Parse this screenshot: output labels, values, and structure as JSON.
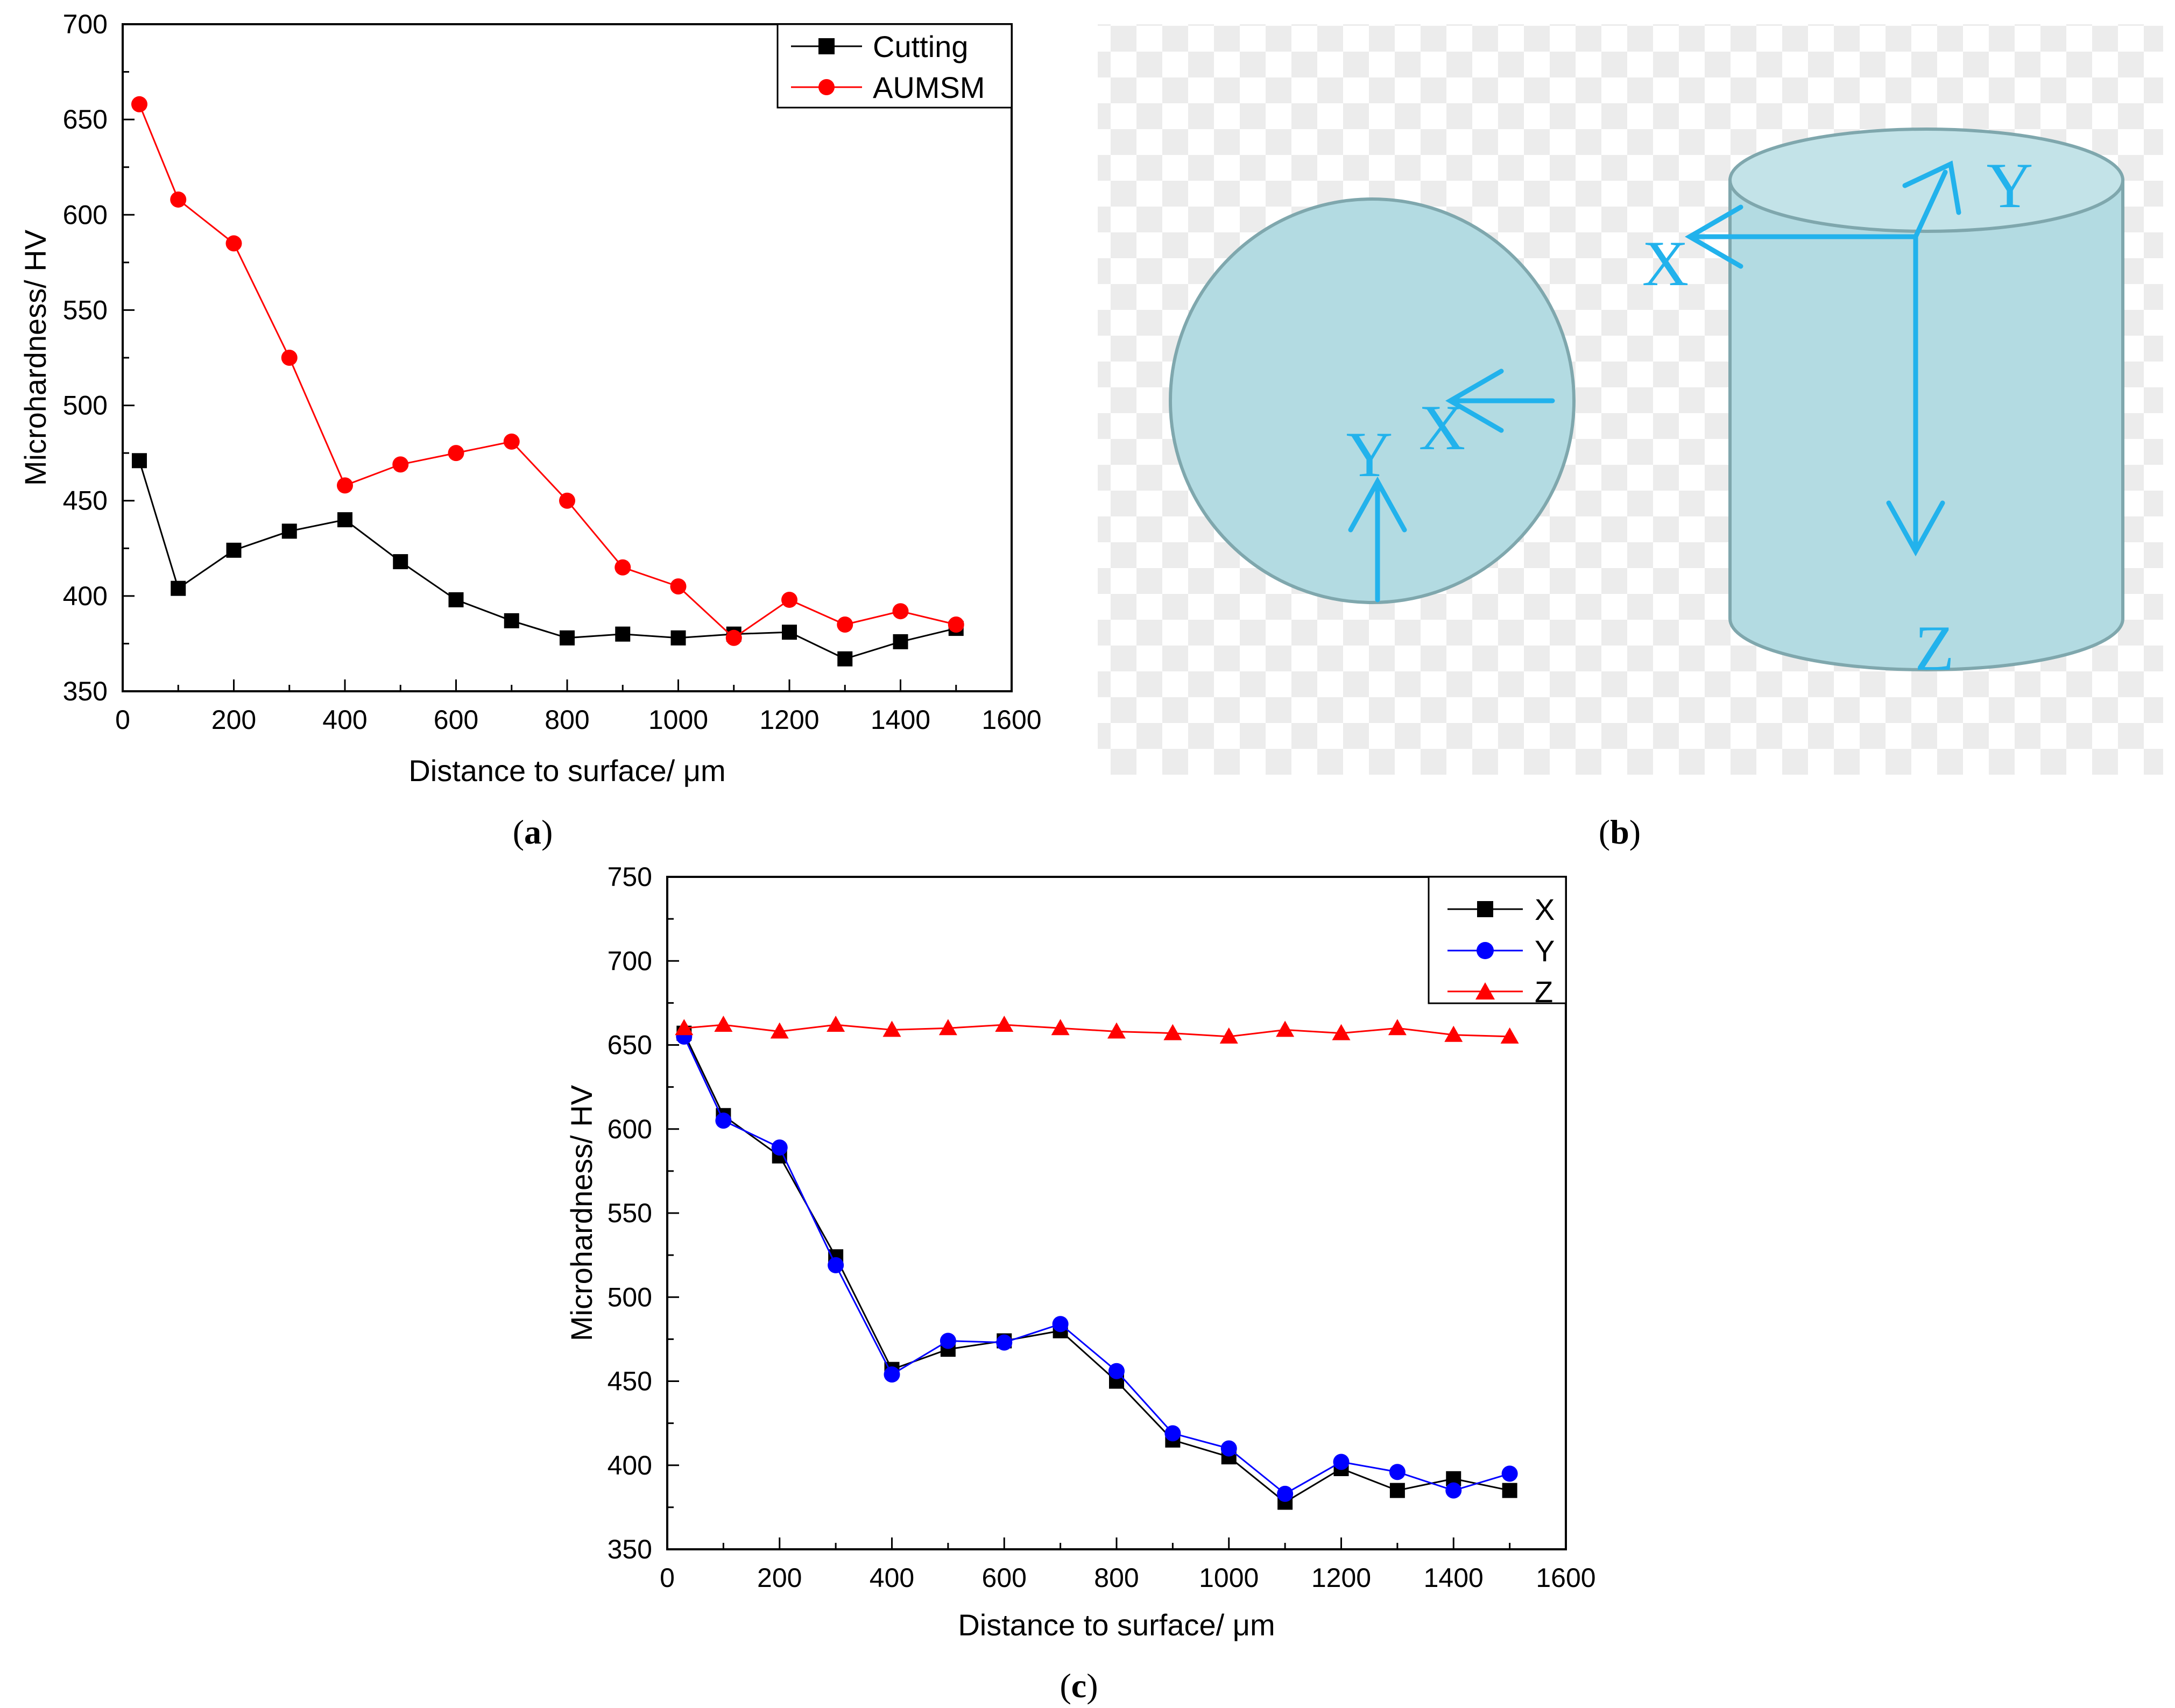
{
  "chart_data": [
    {
      "panel": "a",
      "caption": {
        "open": "(",
        "letter": "a",
        "close": ")"
      },
      "type": "line",
      "title": "",
      "xlabel": "Distance to surface/ μm",
      "ylabel": "Microhardness/ HV",
      "xlim": [
        0,
        1600
      ],
      "ylim": [
        350,
        700
      ],
      "x_ticks": [
        0,
        200,
        400,
        600,
        800,
        1000,
        1200,
        1400,
        1600
      ],
      "y_ticks": [
        350,
        400,
        450,
        500,
        550,
        600,
        650,
        700
      ],
      "legend_position": "top-right",
      "series": [
        {
          "name": "Cutting",
          "color": "#000000",
          "marker": "square",
          "x": [
            30,
            100,
            200,
            300,
            400,
            500,
            600,
            700,
            800,
            900,
            1000,
            1100,
            1200,
            1300,
            1400,
            1500
          ],
          "y": [
            471,
            404,
            424,
            434,
            440,
            418,
            398,
            387,
            378,
            380,
            378,
            380,
            381,
            367,
            376,
            383
          ]
        },
        {
          "name": "AUMSM",
          "color": "#ff0000",
          "marker": "circle",
          "x": [
            30,
            100,
            200,
            300,
            400,
            500,
            600,
            700,
            800,
            900,
            1000,
            1100,
            1200,
            1300,
            1400,
            1500
          ],
          "y": [
            658,
            608,
            585,
            525,
            458,
            469,
            475,
            481,
            450,
            415,
            405,
            378,
            398,
            385,
            392,
            385
          ]
        }
      ]
    },
    {
      "panel": "c",
      "caption": {
        "open": "(",
        "letter": "c",
        "close": ")"
      },
      "type": "line",
      "title": "",
      "xlabel": "Distance to surface/ μm",
      "ylabel": "Microhardness/ HV",
      "xlim": [
        0,
        1600
      ],
      "ylim": [
        350,
        750
      ],
      "x_ticks": [
        0,
        200,
        400,
        600,
        800,
        1000,
        1200,
        1400,
        1600
      ],
      "y_ticks": [
        350,
        400,
        450,
        500,
        550,
        600,
        650,
        700,
        750
      ],
      "legend_position": "top-right",
      "series": [
        {
          "name": "X",
          "color": "#000000",
          "marker": "square",
          "x": [
            30,
            100,
            200,
            300,
            400,
            500,
            600,
            700,
            800,
            900,
            1000,
            1100,
            1200,
            1300,
            1400,
            1500
          ],
          "y": [
            657,
            608,
            584,
            524,
            457,
            469,
            474,
            480,
            450,
            415,
            405,
            378,
            398,
            385,
            392,
            385
          ]
        },
        {
          "name": "Y",
          "color": "#0000ff",
          "marker": "circle",
          "x": [
            30,
            100,
            200,
            300,
            400,
            500,
            600,
            700,
            800,
            900,
            1000,
            1100,
            1200,
            1300,
            1400,
            1500
          ],
          "y": [
            655,
            605,
            589,
            519,
            454,
            474,
            473,
            484,
            456,
            419,
            410,
            383,
            402,
            396,
            385,
            395
          ]
        },
        {
          "name": "Z",
          "color": "#ff0000",
          "marker": "triangle",
          "x": [
            30,
            100,
            200,
            300,
            400,
            500,
            600,
            700,
            800,
            900,
            1000,
            1100,
            1200,
            1300,
            1400,
            1500
          ],
          "y": [
            660,
            662,
            658,
            662,
            659,
            660,
            662,
            660,
            658,
            657,
            655,
            659,
            657,
            660,
            656,
            655
          ]
        }
      ]
    }
  ],
  "schematic": {
    "panel": "b",
    "caption": {
      "open": "(",
      "letter": "b",
      "close": ")"
    },
    "circle_axes": {
      "x_label": "X",
      "y_label": "Y"
    },
    "cylinder_axes": {
      "x_label": "X",
      "y_label": "Y",
      "z_label": "Z"
    },
    "colors": {
      "shape_fill": "#b3dbe2",
      "shape_stroke": "#7fa7ad",
      "arrow": "#22b2ec",
      "checker": "#ececec"
    }
  }
}
